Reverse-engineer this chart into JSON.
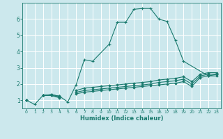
{
  "title": "",
  "xlabel": "Humidex (Indice chaleur)",
  "xlim": [
    -0.5,
    23.5
  ],
  "ylim": [
    0.5,
    7.0
  ],
  "xticks": [
    0,
    1,
    2,
    3,
    4,
    5,
    6,
    7,
    8,
    9,
    10,
    11,
    12,
    13,
    14,
    15,
    16,
    17,
    18,
    19,
    20,
    21,
    22,
    23
  ],
  "yticks": [
    1,
    2,
    3,
    4,
    5,
    6
  ],
  "bg_color": "#cce8ed",
  "line_color": "#1a7a6e",
  "grid_color": "#ffffff",
  "line1_x": [
    0,
    1,
    2,
    3,
    4,
    5,
    6,
    7,
    8,
    10,
    11,
    12,
    13,
    14,
    15,
    16,
    17,
    18,
    19,
    22,
    23
  ],
  "line1_y": [
    1.0,
    0.75,
    1.3,
    1.35,
    1.25,
    0.9,
    1.95,
    3.5,
    3.4,
    4.45,
    5.8,
    5.8,
    6.6,
    6.65,
    6.65,
    6.0,
    5.85,
    4.7,
    3.4,
    2.5,
    2.6
  ],
  "line2_x": [
    0,
    1,
    2,
    3,
    4,
    5,
    6,
    7,
    8,
    9,
    10,
    11,
    12,
    13,
    14,
    15,
    16,
    17,
    18,
    19,
    20,
    21,
    22,
    23
  ],
  "line2_y": [
    1.0,
    null,
    1.3,
    1.3,
    1.15,
    null,
    1.4,
    1.5,
    1.55,
    1.6,
    1.65,
    1.7,
    1.75,
    1.8,
    1.85,
    1.9,
    1.95,
    2.0,
    2.05,
    2.15,
    1.85,
    2.4,
    2.5,
    2.5
  ],
  "line3_x": [
    0,
    1,
    2,
    3,
    4,
    5,
    6,
    7,
    8,
    9,
    10,
    11,
    12,
    13,
    14,
    15,
    16,
    17,
    18,
    19,
    20,
    21,
    22,
    23
  ],
  "line3_y": [
    1.0,
    null,
    1.3,
    1.3,
    1.2,
    null,
    1.5,
    1.6,
    1.65,
    1.7,
    1.75,
    1.8,
    1.85,
    1.9,
    1.95,
    2.0,
    2.1,
    2.15,
    2.2,
    2.3,
    2.0,
    2.5,
    2.6,
    2.6
  ],
  "line4_x": [
    0,
    1,
    2,
    3,
    4,
    5,
    6,
    7,
    8,
    9,
    10,
    11,
    12,
    13,
    14,
    15,
    16,
    17,
    18,
    19,
    20,
    21,
    22,
    23
  ],
  "line4_y": [
    1.0,
    null,
    1.3,
    1.35,
    1.25,
    null,
    1.6,
    1.75,
    1.8,
    1.85,
    1.9,
    1.95,
    2.0,
    2.05,
    2.1,
    2.15,
    2.25,
    2.3,
    2.35,
    2.45,
    2.15,
    2.6,
    2.7,
    2.7
  ]
}
